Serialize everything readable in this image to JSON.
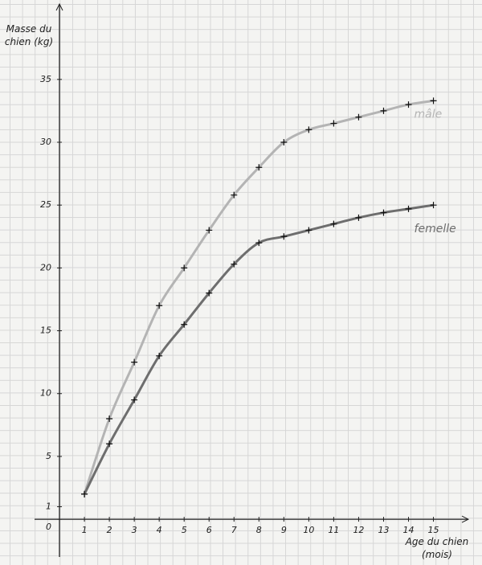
{
  "chart_data": {
    "type": "line",
    "title": "Masse du chien (kg)",
    "x_label": "Age du chien (mois)",
    "x": [
      1,
      2,
      3,
      4,
      5,
      6,
      7,
      8,
      9,
      10,
      11,
      12,
      13,
      14,
      15
    ],
    "series": [
      {
        "name": "mâle",
        "color": "#b4b4b4",
        "values": [
          2,
          8,
          12.5,
          17,
          20,
          23,
          25.8,
          28,
          30,
          31,
          31.5,
          32,
          32.5,
          33,
          33.3
        ]
      },
      {
        "name": "femelle",
        "color": "#6e6e6e",
        "values": [
          2,
          6,
          9.5,
          13,
          15.5,
          18,
          20.3,
          22,
          22.5,
          23,
          23.5,
          24,
          24.4,
          24.7,
          25
        ]
      }
    ],
    "xlim": [
      -1,
      16.4
    ],
    "ylim": [
      -3,
      41
    ],
    "xticks": [
      1,
      2,
      3,
      4,
      5,
      6,
      7,
      8,
      9,
      10,
      11,
      12,
      13,
      14,
      15
    ],
    "yticks": [
      0,
      1,
      5,
      10,
      15,
      20,
      25,
      30,
      35
    ]
  }
}
